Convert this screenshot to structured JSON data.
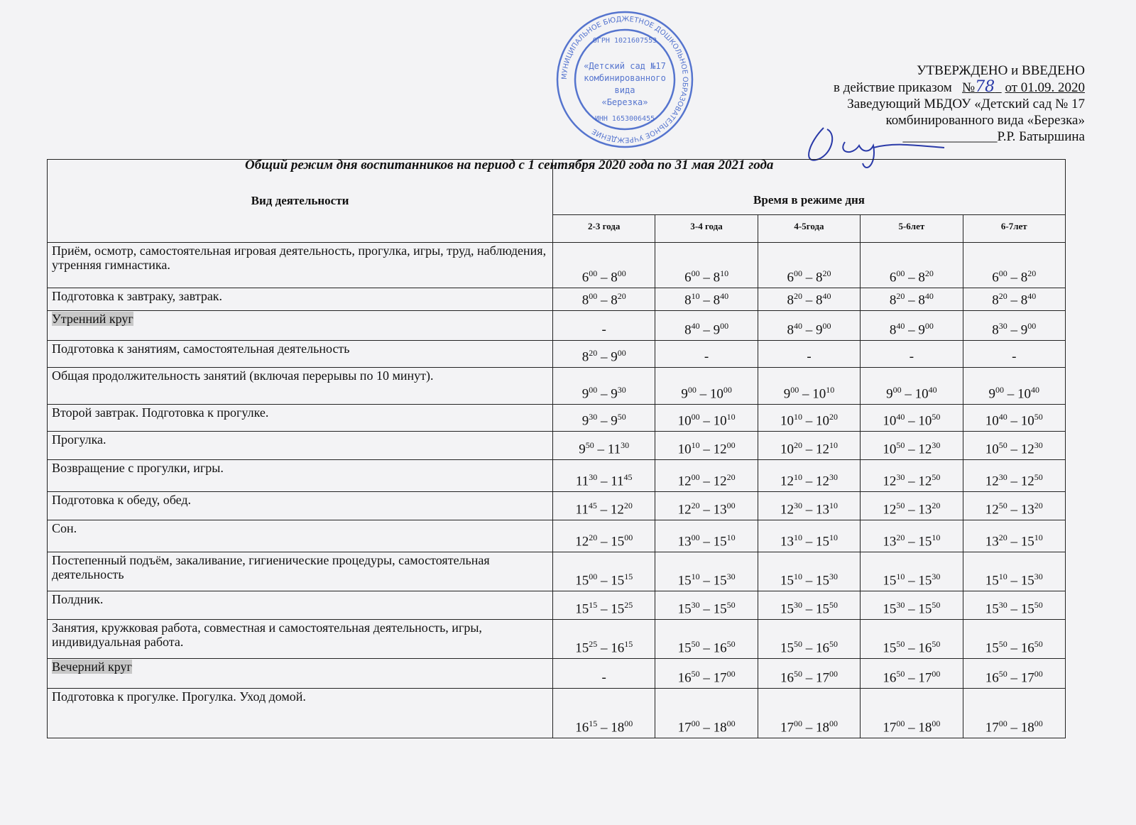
{
  "approval": {
    "line1": "УТВЕРЖДЕНО и  ВВЕДЕНО",
    "line2_prefix": "в действие приказом",
    "order_no_label": "№",
    "order_no": "78",
    "order_date": "от 01.09. 2020",
    "line3": "Заведующий МБДОУ «Детский сад №  17",
    "line4": "комбинированного вида «Березка»",
    "signer": "Р.Р. Батыршина"
  },
  "stamp": {
    "outer_text": "МУНИЦИПАЛЬНОЕ БЮДЖЕТНОЕ ДОШКОЛЬНОЕ ОБРАЗОВАТЕЛЬНОЕ УЧРЕЖДЕНИЕ",
    "ogrn": "ОГРН 1021607553",
    "inn": "ИНН 1653006455",
    "center": [
      "«Детский сад №17",
      "комбинированного",
      "вида",
      "«Березка»"
    ],
    "color": "#3a5fc8"
  },
  "title": "Общий режим дня воспитанников на период с 1 сентября 2020 года  по 31 мая 2021 года",
  "table": {
    "header_activity": "Вид деятельности",
    "header_time": "Время в режиме дня",
    "age_groups": [
      "2-3 года",
      "3-4 года",
      "4-5года",
      "5-6лет",
      "6-7лет"
    ],
    "rows": [
      {
        "activity": "Приём, осмотр, самостоятельная  игровая деятельность, прогулка, игры, труд, наблюдения, утренняя гимнастика.",
        "highlight": false,
        "times": [
          [
            "6",
            "00",
            "8",
            "00"
          ],
          [
            "6",
            "00",
            "8",
            "10"
          ],
          [
            "6",
            "00",
            "8",
            "20"
          ],
          [
            "6",
            "00",
            "8",
            "20"
          ],
          [
            "6",
            "00",
            "8",
            "20"
          ]
        ]
      },
      {
        "activity": "Подготовка к завтраку, завтрак.",
        "highlight": false,
        "times": [
          [
            "8",
            "00",
            "8",
            "20"
          ],
          [
            "8",
            "10",
            "8",
            "40"
          ],
          [
            "8",
            "20",
            "8",
            "40"
          ],
          [
            "8",
            "20",
            "8",
            "40"
          ],
          [
            "8",
            "20",
            "8",
            "40"
          ]
        ]
      },
      {
        "activity": "Утренний круг",
        "highlight": true,
        "times": [
          "-",
          [
            "8",
            "40",
            "9",
            "00"
          ],
          [
            "8",
            "40",
            "9",
            "00"
          ],
          [
            "8",
            "40",
            "9",
            "00"
          ],
          [
            "8",
            "30",
            "9",
            "00"
          ]
        ]
      },
      {
        "activity": "Подготовка к занятиям,  самостоятельная деятельность",
        "highlight": false,
        "times": [
          [
            "8",
            "20",
            "9",
            "00"
          ],
          "-",
          "-",
          "-",
          "-"
        ]
      },
      {
        "activity": "Общая продолжительность занятий (включая перерывы по 10 минут).",
        "highlight": false,
        "times": [
          [
            "9",
            "00",
            "9",
            "30"
          ],
          [
            "9",
            "00",
            "10",
            "00"
          ],
          [
            "9",
            "00",
            "10",
            "10"
          ],
          [
            "9",
            "00",
            "10",
            "40"
          ],
          [
            "9",
            "00",
            "10",
            "40"
          ]
        ]
      },
      {
        "activity": "Второй завтрак. Подготовка к прогулке.",
        "highlight": false,
        "times": [
          [
            "9",
            "30",
            "9",
            "50"
          ],
          [
            "10",
            "00",
            "10",
            "10"
          ],
          [
            "10",
            "10",
            "10",
            "20"
          ],
          [
            "10",
            "40",
            "10",
            "50"
          ],
          [
            "10",
            "40",
            "10",
            "50"
          ]
        ]
      },
      {
        "activity": "Прогулка.",
        "highlight": false,
        "times": [
          [
            "9",
            "50",
            "11",
            "30"
          ],
          [
            "10",
            "10",
            "12",
            "00"
          ],
          [
            "10",
            "20",
            "12",
            "10"
          ],
          [
            "10",
            "50",
            "12",
            "30"
          ],
          [
            "10",
            "50",
            "12",
            "30"
          ]
        ]
      },
      {
        "activity": "Возвращение с прогулки, игры.",
        "highlight": false,
        "times": [
          [
            "11",
            "30",
            "11",
            "45"
          ],
          [
            "12",
            "00",
            "12",
            "20"
          ],
          [
            "12",
            "10",
            "12",
            "30"
          ],
          [
            "12",
            "30",
            "12",
            "50"
          ],
          [
            "12",
            "30",
            "12",
            "50"
          ]
        ]
      },
      {
        "activity": "Подготовка к обеду, обед.",
        "highlight": false,
        "times": [
          [
            "11",
            "45",
            "12",
            "20"
          ],
          [
            "12",
            "20",
            "13",
            "00"
          ],
          [
            "12",
            "30",
            "13",
            "10"
          ],
          [
            "12",
            "50",
            "13",
            "20"
          ],
          [
            "12",
            "50",
            "13",
            "20"
          ]
        ]
      },
      {
        "activity": "Сон.",
        "highlight": false,
        "times": [
          [
            "12",
            "20",
            "15",
            "00"
          ],
          [
            "13",
            "00",
            "15",
            "10"
          ],
          [
            "13",
            "10",
            "15",
            "10"
          ],
          [
            "13",
            "20",
            "15",
            "10"
          ],
          [
            "13",
            "20",
            "15",
            "10"
          ]
        ]
      },
      {
        "activity": "Постепенный подъём, закаливание, гигиенические процедуры, самостоятельная деятельность",
        "highlight": false,
        "times": [
          [
            "15",
            "00",
            "15",
            "15"
          ],
          [
            "15",
            "10",
            "15",
            "30"
          ],
          [
            "15",
            "10",
            "15",
            "30"
          ],
          [
            "15",
            "10",
            "15",
            "30"
          ],
          [
            "15",
            "10",
            "15",
            "30"
          ]
        ]
      },
      {
        "activity": "Полдник.",
        "highlight": false,
        "times": [
          [
            "15",
            "15",
            "15",
            "25"
          ],
          [
            "15",
            "30",
            "15",
            "50"
          ],
          [
            "15",
            "30",
            "15",
            "50"
          ],
          [
            "15",
            "30",
            "15",
            "50"
          ],
          [
            "15",
            "30",
            "15",
            "50"
          ]
        ]
      },
      {
        "activity": "Занятия, кружковая работа, совместная и самостоятельная деятельность, игры, индивидуальная работа.",
        "highlight": false,
        "times": [
          [
            "15",
            "25",
            "16",
            "15"
          ],
          [
            "15",
            "50",
            "16",
            "50"
          ],
          [
            "15",
            "50",
            "16",
            "50"
          ],
          [
            "15",
            "50",
            "16",
            "50"
          ],
          [
            "15",
            "50",
            "16",
            "50"
          ]
        ]
      },
      {
        "activity": "Вечерний круг",
        "highlight": true,
        "times": [
          "-",
          [
            "16",
            "50",
            "17",
            "00"
          ],
          [
            "16",
            "50",
            "17",
            "00"
          ],
          [
            "16",
            "50",
            "17",
            "00"
          ],
          [
            "16",
            "50",
            "17",
            "00"
          ]
        ]
      },
      {
        "activity": "Подготовка к прогулке. Прогулка. Уход домой.",
        "highlight": false,
        "times": [
          [
            "16",
            "15",
            "18",
            "00"
          ],
          [
            "17",
            "00",
            "18",
            "00"
          ],
          [
            "17",
            "00",
            "18",
            "00"
          ],
          [
            "17",
            "00",
            "18",
            "00"
          ],
          [
            "17",
            "00",
            "18",
            "00"
          ]
        ]
      }
    ]
  }
}
